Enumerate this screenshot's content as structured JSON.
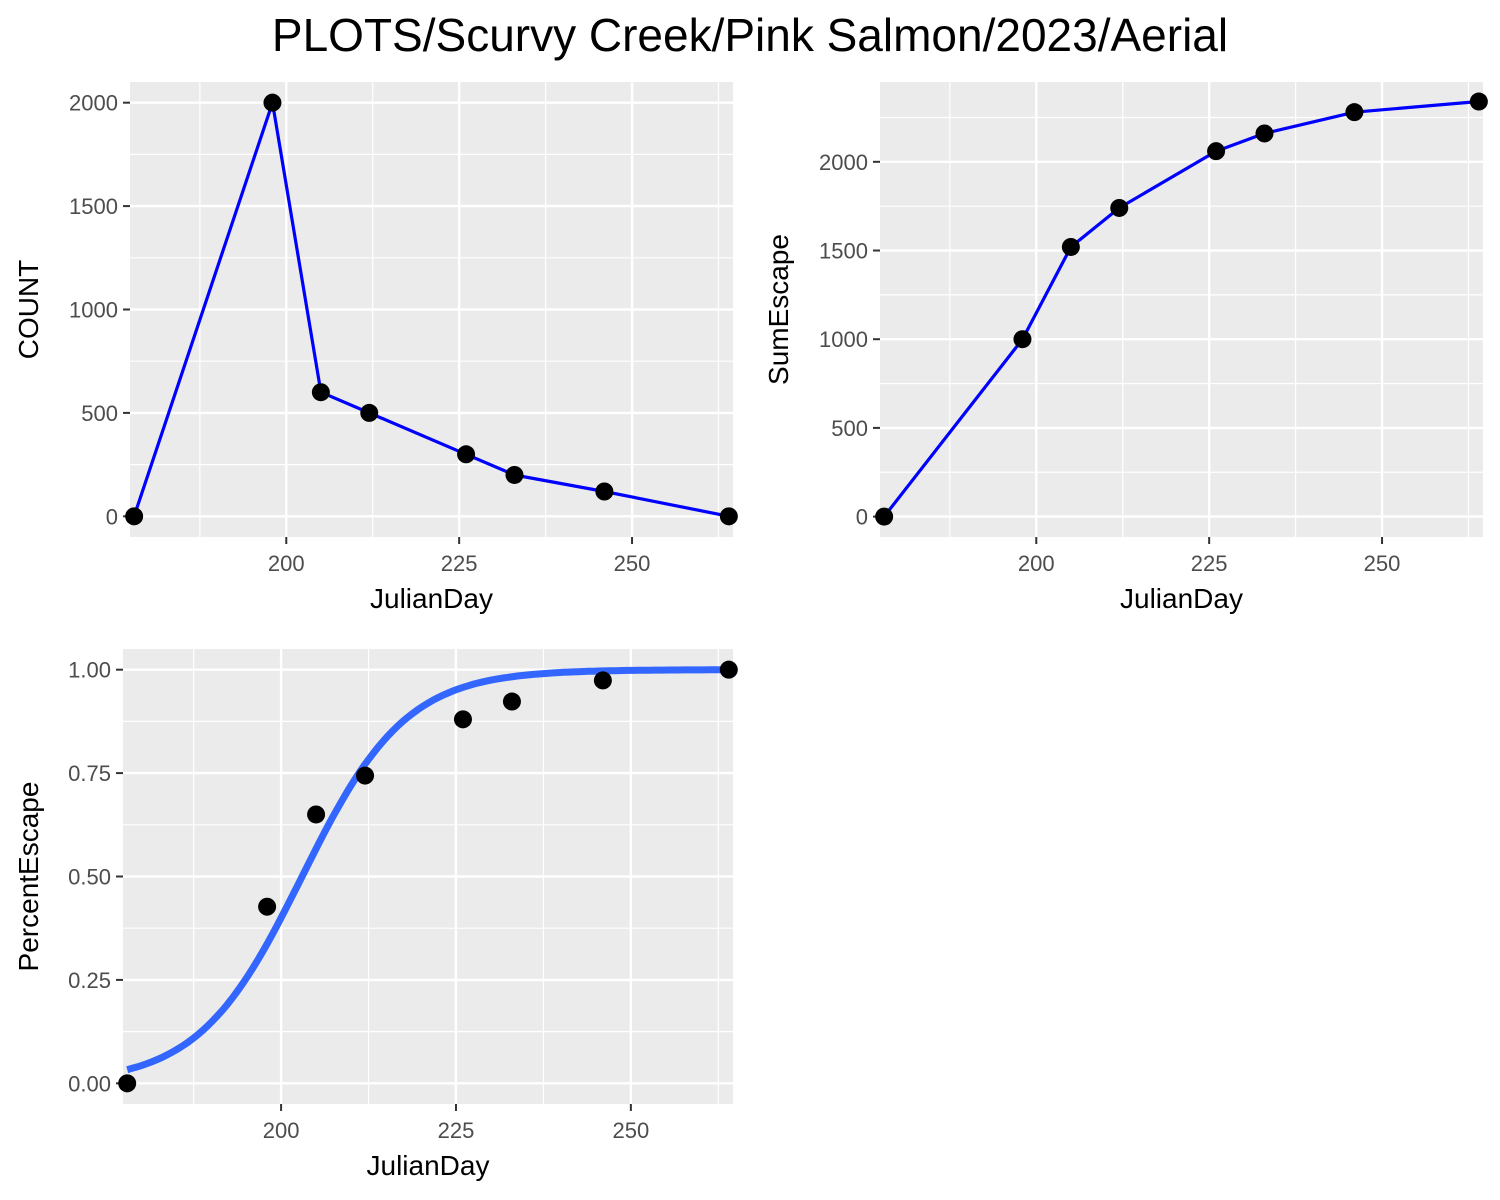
{
  "title": "PLOTS/Scurvy Creek/Pink Salmon/2023/Aerial",
  "colors": {
    "panel_bg": "#ebebeb",
    "grid": "#ffffff",
    "line": "#0000ff",
    "fit_line": "#3366ff",
    "point": "#000000",
    "tick_text": "#4d4d4d"
  },
  "chart_data": [
    {
      "type": "line",
      "xlabel": "JulianDay",
      "ylabel": "COUNT",
      "xlim": [
        177.4,
        264.6
      ],
      "ylim": [
        -100,
        2100
      ],
      "x_ticks": [
        200,
        225,
        250
      ],
      "x_tick_labels": [
        "200",
        "225",
        "250"
      ],
      "y_ticks": [
        0,
        500,
        1000,
        1500,
        2000
      ],
      "y_tick_labels": [
        "0",
        "500",
        "1000",
        "1500",
        "2000"
      ],
      "grid": true,
      "x": [
        178,
        198,
        205,
        212,
        226,
        233,
        246,
        264
      ],
      "y": [
        0,
        2000,
        600,
        500,
        300,
        200,
        120,
        0
      ]
    },
    {
      "type": "line",
      "xlabel": "JulianDay",
      "ylabel": "SumEscape",
      "xlim": [
        177.4,
        264.6
      ],
      "ylim": [
        -115,
        2450
      ],
      "x_ticks": [
        200,
        225,
        250
      ],
      "x_tick_labels": [
        "200",
        "225",
        "250"
      ],
      "y_ticks": [
        0,
        500,
        1000,
        1500,
        2000
      ],
      "y_tick_labels": [
        "0",
        "500",
        "1000",
        "1500",
        "2000"
      ],
      "grid": true,
      "x": [
        178,
        198,
        205,
        212,
        226,
        233,
        246,
        264
      ],
      "y": [
        0,
        1000,
        1520,
        1740,
        2060,
        2160,
        2280,
        2340
      ]
    },
    {
      "type": "scatter",
      "xlabel": "JulianDay",
      "ylabel": "PercentEscape",
      "xlim": [
        177.4,
        264.6
      ],
      "ylim": [
        -0.05,
        1.05
      ],
      "x_ticks": [
        200,
        225,
        250
      ],
      "x_tick_labels": [
        "200",
        "225",
        "250"
      ],
      "y_ticks": [
        0,
        0.25,
        0.5,
        0.75,
        1
      ],
      "y_tick_labels": [
        "0.00",
        "0.25",
        "0.50",
        "0.75",
        "1.00"
      ],
      "grid": true,
      "x": [
        178,
        198,
        205,
        212,
        226,
        233,
        246,
        264
      ],
      "y": [
        0,
        0.427,
        0.65,
        0.744,
        0.88,
        0.923,
        0.974,
        1.0
      ],
      "fit": {
        "type": "logistic",
        "midpoint": 203,
        "scale": 7.4
      }
    }
  ]
}
